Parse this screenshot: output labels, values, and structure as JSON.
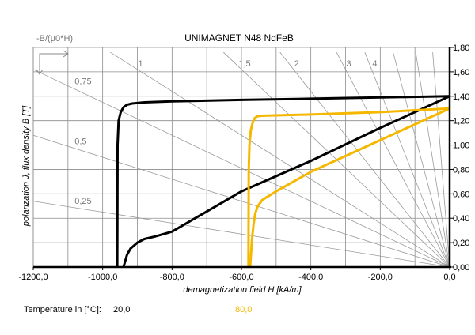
{
  "chart_data": {
    "type": "line",
    "title": "UNIMAGNET N48 NdFeB",
    "corner_label": "-B/(µ0*H)",
    "xlabel": "demagnetization field H [kA/m]",
    "ylabel": "polarization J, flux density B [T]",
    "xlim": [
      -1200,
      0
    ],
    "ylim": [
      0,
      1.8
    ],
    "x_ticks": [
      "-1200,0",
      "-1000,0",
      "-800,0",
      "-600,0",
      "-400,0",
      "-200,0",
      "0,0"
    ],
    "x_tick_values": [
      -1200,
      -1000,
      -800,
      -600,
      -400,
      -200,
      0
    ],
    "y_ticks": [
      "0,00",
      "0,20",
      "0,40",
      "0,60",
      "0,80",
      "1,00",
      "1,20",
      "1,40",
      "1,60",
      "1,80"
    ],
    "y_tick_values": [
      0,
      0.2,
      0.4,
      0.6,
      0.8,
      1.0,
      1.2,
      1.4,
      1.6,
      1.8
    ],
    "grid": true,
    "load_lines": [
      {
        "label": "0,25",
        "slope": 0.25
      },
      {
        "label": "0,5",
        "slope": 0.5
      },
      {
        "label": "0,75",
        "slope": 0.75
      },
      {
        "label": "1",
        "slope": 1
      },
      {
        "label": "1,5",
        "slope": 1.5
      },
      {
        "label": "2",
        "slope": 2
      },
      {
        "label": "3",
        "slope": 3
      },
      {
        "label": "4",
        "slope": 4
      },
      {
        "slope": 6
      },
      {
        "slope": 10
      },
      {
        "slope": 20
      }
    ],
    "series": [
      {
        "name": "20,0",
        "color": "#000000",
        "J": {
          "x": [
            -958,
            -957,
            -954,
            -948,
            -940,
            -930,
            -915,
            -880,
            -800,
            -600,
            -400,
            -200,
            0
          ],
          "y": [
            0,
            1.0,
            1.2,
            1.27,
            1.31,
            1.33,
            1.34,
            1.35,
            1.358,
            1.37,
            1.38,
            1.39,
            1.4
          ]
        },
        "B": {
          "x": [
            -940,
            -930,
            -920,
            -900,
            -880,
            -850,
            -800,
            -600,
            -400,
            -200,
            0
          ],
          "y": [
            0,
            0.1,
            0.15,
            0.2,
            0.23,
            0.25,
            0.29,
            0.62,
            0.87,
            1.14,
            1.4
          ]
        }
      },
      {
        "name": "80,0",
        "color": "#f5b800",
        "J": {
          "x": [
            -580,
            -579,
            -577,
            -573,
            -568,
            -562,
            -555,
            -545,
            -400,
            -200,
            0
          ],
          "y": [
            0,
            0.8,
            1.0,
            1.12,
            1.18,
            1.22,
            1.235,
            1.24,
            1.25,
            1.27,
            1.3
          ]
        },
        "B": {
          "x": [
            -575,
            -570,
            -565,
            -560,
            -553,
            -540,
            -500,
            -400,
            -200,
            0
          ],
          "y": [
            0,
            0.22,
            0.35,
            0.44,
            0.5,
            0.55,
            0.62,
            0.78,
            1.04,
            1.3
          ]
        }
      }
    ]
  },
  "legend": {
    "caption": "Temperature in [°C]:",
    "entries": [
      {
        "label": "20,0",
        "color": "#000000"
      },
      {
        "label": "80,0",
        "color": "#f5b800"
      }
    ]
  }
}
